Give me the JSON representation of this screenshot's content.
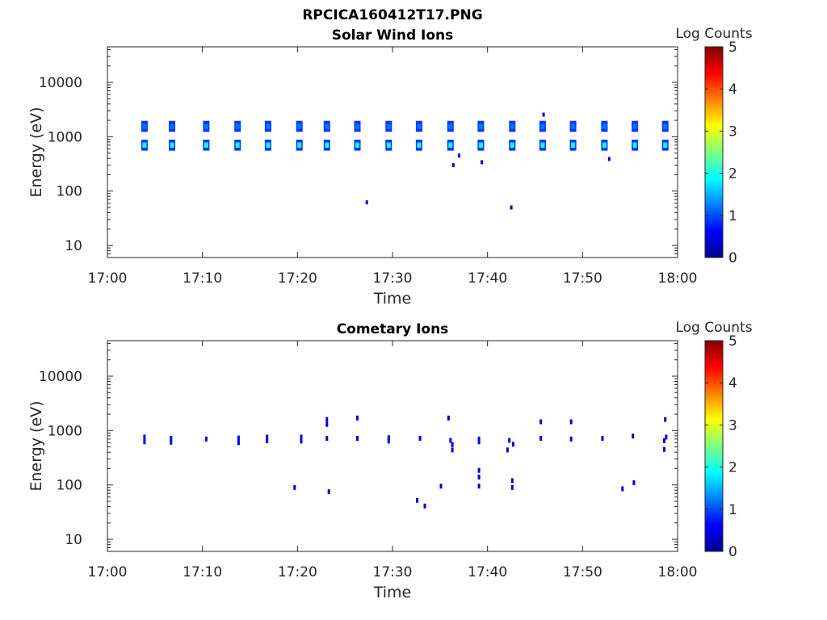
{
  "figure_title": "RPCICA160412T17.PNG",
  "colors": {
    "colormap": [
      "#00008f",
      "#0000ff",
      "#0080ff",
      "#00ffff",
      "#80ff80",
      "#ffff00",
      "#ff8000",
      "#ff0000",
      "#800000"
    ],
    "axes": "#262626"
  },
  "chart_data": [
    {
      "type": "heatmap",
      "title": "Solar Wind Ions",
      "xlabel": "Time",
      "ylabel": "Energy (eV)",
      "x_ticks": [
        "17:00",
        "17:10",
        "17:20",
        "17:30",
        "17:40",
        "17:50",
        "18:00"
      ],
      "xlim_minutes": [
        0,
        60
      ],
      "y_ticks": [
        "10",
        "100",
        "1000",
        "10000"
      ],
      "y_scale": "log",
      "ylim": [
        6,
        45000
      ],
      "colorbar": {
        "label": "Log Counts",
        "ticks": [
          "0",
          "1",
          "2",
          "3",
          "4",
          "5"
        ],
        "range": [
          0,
          5
        ]
      },
      "bursts_minutes": [
        3.9,
        6.8,
        10.4,
        13.7,
        16.9,
        20.2,
        23.1,
        26.3,
        29.6,
        32.8,
        36.1,
        39.3,
        42.6,
        45.8,
        49.0,
        52.3,
        55.5,
        58.7
      ],
      "band_energies_eV": [
        1550,
        700
      ],
      "band_log_counts": [
        1.2,
        2.0
      ],
      "isolated_points": [
        {
          "minute": 27.3,
          "energy_eV": 62,
          "log_counts": 0.4
        },
        {
          "minute": 42.5,
          "energy_eV": 50,
          "log_counts": 0.4
        },
        {
          "minute": 45.9,
          "energy_eV": 2550,
          "log_counts": 0.4
        },
        {
          "minute": 36.4,
          "energy_eV": 300,
          "log_counts": 0.5
        },
        {
          "minute": 39.4,
          "energy_eV": 340,
          "log_counts": 0.4
        },
        {
          "minute": 37.0,
          "energy_eV": 450,
          "log_counts": 0.5
        },
        {
          "minute": 52.8,
          "energy_eV": 390,
          "log_counts": 0.4
        }
      ]
    },
    {
      "type": "heatmap",
      "title": "Cometary Ions",
      "xlabel": "Time",
      "ylabel": "Energy (eV)",
      "x_ticks": [
        "17:00",
        "17:10",
        "17:20",
        "17:30",
        "17:40",
        "17:50",
        "18:00"
      ],
      "xlim_minutes": [
        0,
        60
      ],
      "y_ticks": [
        "10",
        "100",
        "1000",
        "10000"
      ],
      "y_scale": "log",
      "ylim": [
        6,
        45000
      ],
      "colorbar": {
        "label": "Log Counts",
        "ticks": [
          "0",
          "1",
          "2",
          "3",
          "4",
          "5"
        ],
        "range": [
          0,
          5
        ]
      },
      "points": [
        {
          "minute": 3.9,
          "energy_eV": 760,
          "log_counts": 0.5
        },
        {
          "minute": 3.9,
          "energy_eV": 620,
          "log_counts": 0.4
        },
        {
          "minute": 6.7,
          "energy_eV": 720,
          "log_counts": 0.5
        },
        {
          "minute": 6.7,
          "energy_eV": 610,
          "log_counts": 0.4
        },
        {
          "minute": 10.4,
          "energy_eV": 700,
          "log_counts": 0.5
        },
        {
          "minute": 13.8,
          "energy_eV": 730,
          "log_counts": 0.5
        },
        {
          "minute": 13.8,
          "energy_eV": 600,
          "log_counts": 0.4
        },
        {
          "minute": 16.8,
          "energy_eV": 760,
          "log_counts": 0.5
        },
        {
          "minute": 16.8,
          "energy_eV": 650,
          "log_counts": 0.4
        },
        {
          "minute": 19.7,
          "energy_eV": 90,
          "log_counts": 0.4
        },
        {
          "minute": 20.4,
          "energy_eV": 760,
          "log_counts": 0.4
        },
        {
          "minute": 20.4,
          "energy_eV": 640,
          "log_counts": 0.4
        },
        {
          "minute": 23.1,
          "energy_eV": 1600,
          "log_counts": 0.4
        },
        {
          "minute": 23.1,
          "energy_eV": 1300,
          "log_counts": 0.4
        },
        {
          "minute": 23.1,
          "energy_eV": 720,
          "log_counts": 0.5
        },
        {
          "minute": 23.3,
          "energy_eV": 75,
          "log_counts": 0.4
        },
        {
          "minute": 26.3,
          "energy_eV": 1700,
          "log_counts": 0.4
        },
        {
          "minute": 26.3,
          "energy_eV": 720,
          "log_counts": 0.5
        },
        {
          "minute": 29.6,
          "energy_eV": 740,
          "log_counts": 0.4
        },
        {
          "minute": 29.6,
          "energy_eV": 640,
          "log_counts": 0.4
        },
        {
          "minute": 32.6,
          "energy_eV": 52,
          "log_counts": 0.4
        },
        {
          "minute": 32.9,
          "energy_eV": 720,
          "log_counts": 0.5
        },
        {
          "minute": 33.4,
          "energy_eV": 41,
          "log_counts": 0.4
        },
        {
          "minute": 35.1,
          "energy_eV": 95,
          "log_counts": 0.4
        },
        {
          "minute": 35.9,
          "energy_eV": 1700,
          "log_counts": 0.4
        },
        {
          "minute": 36.1,
          "energy_eV": 660,
          "log_counts": 0.5
        },
        {
          "minute": 36.3,
          "energy_eV": 550,
          "log_counts": 0.4
        },
        {
          "minute": 36.3,
          "energy_eV": 440,
          "log_counts": 0.4
        },
        {
          "minute": 39.1,
          "energy_eV": 700,
          "log_counts": 0.5
        },
        {
          "minute": 39.1,
          "energy_eV": 620,
          "log_counts": 0.5
        },
        {
          "minute": 39.1,
          "energy_eV": 185,
          "log_counts": 0.4
        },
        {
          "minute": 39.1,
          "energy_eV": 140,
          "log_counts": 0.4
        },
        {
          "minute": 39.1,
          "energy_eV": 95,
          "log_counts": 0.4
        },
        {
          "minute": 42.3,
          "energy_eV": 660,
          "log_counts": 0.4
        },
        {
          "minute": 42.7,
          "energy_eV": 560,
          "log_counts": 0.4
        },
        {
          "minute": 42.1,
          "energy_eV": 440,
          "log_counts": 0.4
        },
        {
          "minute": 42.6,
          "energy_eV": 120,
          "log_counts": 0.4
        },
        {
          "minute": 42.6,
          "energy_eV": 90,
          "log_counts": 0.4
        },
        {
          "minute": 45.6,
          "energy_eV": 1450,
          "log_counts": 0.4
        },
        {
          "minute": 45.6,
          "energy_eV": 720,
          "log_counts": 0.5
        },
        {
          "minute": 48.8,
          "energy_eV": 1450,
          "log_counts": 0.4
        },
        {
          "minute": 48.8,
          "energy_eV": 700,
          "log_counts": 0.5
        },
        {
          "minute": 52.1,
          "energy_eV": 720,
          "log_counts": 0.5
        },
        {
          "minute": 54.2,
          "energy_eV": 85,
          "log_counts": 0.4
        },
        {
          "minute": 55.3,
          "energy_eV": 790,
          "log_counts": 0.4
        },
        {
          "minute": 55.4,
          "energy_eV": 110,
          "log_counts": 0.4
        },
        {
          "minute": 58.7,
          "energy_eV": 1600,
          "log_counts": 0.4
        },
        {
          "minute": 58.8,
          "energy_eV": 760,
          "log_counts": 0.5
        },
        {
          "minute": 58.6,
          "energy_eV": 650,
          "log_counts": 0.5
        },
        {
          "minute": 58.6,
          "energy_eV": 450,
          "log_counts": 0.4
        }
      ]
    }
  ]
}
